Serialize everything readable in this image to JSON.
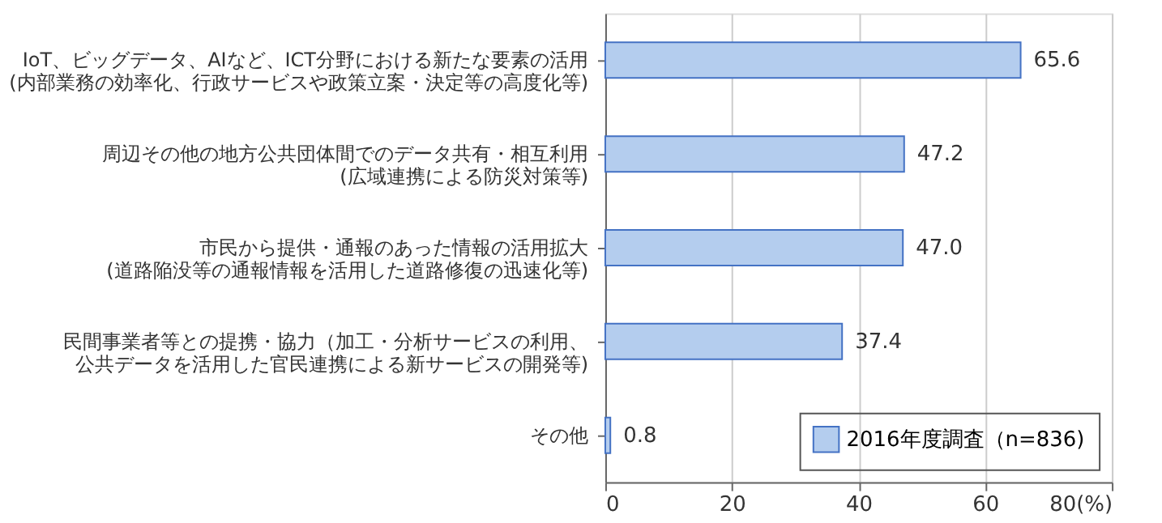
{
  "chart_data": {
    "type": "bar",
    "orientation": "horizontal",
    "categories": [
      "IoT、ビッグデータ、AIなど、ICT分野における新たな要素の活用(内部業務の効率化、行政サービスや政策立案・決定等の高度化等)",
      "周辺その他の地方公共団体間でのデータ共有・相互利用(広域連携による防災対策等)",
      "市民から提供・通報のあった情報の活用拡大(道路陥没等の通報情報を活用した道路修復の迅速化等)",
      "民間事業者等との提携・協力（加工・分析サービスの利用、公共データを活用した官民連携による新サービスの開発等)",
      "その他"
    ],
    "series": [
      {
        "name": "2016年度調査（n=836)",
        "color": "#b4cdee",
        "values": [
          65.6,
          47.2,
          47.0,
          37.4,
          0.8
        ]
      }
    ],
    "value_labels": [
      "65.6",
      "47.2",
      "47.0",
      "37.4",
      "0.8"
    ],
    "xlim": [
      0,
      80
    ],
    "xticks": [
      0,
      20,
      40,
      60,
      {
        "value": 80,
        "label": "80(%)"
      }
    ],
    "grid": "x",
    "legend": "bottom right"
  }
}
